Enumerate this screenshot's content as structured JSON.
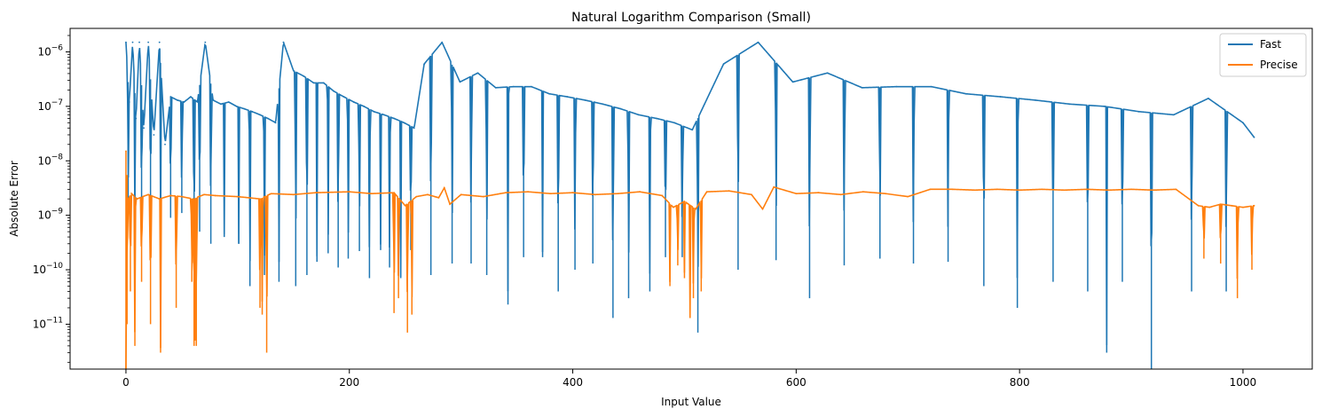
{
  "chart_data": {
    "type": "line",
    "title": "Natural Logarithm Comparison (Small)",
    "xlabel": "Input Value",
    "ylabel": "Absolute Error",
    "xlim": [
      -50,
      1062
    ],
    "ylim": [
      1.5e-12,
      2.7e-06
    ],
    "yscale": "log",
    "grid": false,
    "legend_position": "top-right",
    "xticks": [
      {
        "value": 0,
        "label": "0"
      },
      {
        "value": 200,
        "label": "200"
      },
      {
        "value": 400,
        "label": "400"
      },
      {
        "value": 600,
        "label": "600"
      },
      {
        "value": 800,
        "label": "800"
      },
      {
        "value": 1000,
        "label": "1000"
      }
    ],
    "yticks": [
      {
        "value": 1e-11,
        "base": "10",
        "exp": "−11"
      },
      {
        "value": 1e-10,
        "base": "10",
        "exp": "−10"
      },
      {
        "value": 1e-09,
        "base": "10",
        "exp": "−9"
      },
      {
        "value": 1e-08,
        "base": "10",
        "exp": "−8"
      },
      {
        "value": 1e-07,
        "base": "10",
        "exp": "−7"
      },
      {
        "value": 1e-06,
        "base": "10",
        "exp": "−6"
      }
    ],
    "series": [
      {
        "name": "Fast",
        "color": "#1f77b4",
        "x": [
          0,
          3,
          6,
          9,
          12,
          16,
          20,
          25,
          30,
          35,
          40,
          46,
          52,
          58,
          64,
          71,
          78,
          85,
          92,
          99,
          106,
          113,
          120,
          127,
          134,
          141,
          150,
          159,
          168,
          177,
          186,
          195,
          204,
          213,
          222,
          231,
          240,
          249,
          258,
          267,
          283,
          299,
          315,
          331,
          347,
          363,
          379,
          395,
          411,
          427,
          443,
          459,
          475,
          491,
          507,
          535,
          566,
          597,
          628,
          659,
          690,
          721,
          752,
          783,
          814,
          845,
          876,
          907,
          938,
          969,
          1000,
          1010
        ],
        "y": [
          1.5e-06,
          1.2e-07,
          1.5e-06,
          6e-08,
          1.5e-06,
          4e-08,
          1.5e-06,
          3e-08,
          1.5e-06,
          2e-08,
          1.5e-07,
          1.3e-07,
          1.2e-07,
          1.5e-07,
          1.2e-07,
          1.5e-06,
          1.3e-07,
          1.1e-07,
          1.2e-07,
          1e-07,
          9e-08,
          8e-08,
          7e-08,
          6e-08,
          5e-08,
          1.5e-06,
          4.5e-07,
          3.6e-07,
          2.7e-07,
          2.7e-07,
          1.9e-07,
          1.5e-07,
          1.2e-07,
          1e-07,
          8e-08,
          7e-08,
          6e-08,
          5e-08,
          4e-08,
          6e-07,
          1.5e-06,
          2.8e-07,
          4.1e-07,
          2.2e-07,
          2.3e-07,
          2.3e-07,
          1.7e-07,
          1.5e-07,
          1.3e-07,
          1.1e-07,
          9e-08,
          7e-08,
          6e-08,
          5e-08,
          3.7e-08,
          6e-07,
          1.5e-06,
          2.8e-07,
          4.1e-07,
          2.2e-07,
          2.3e-07,
          2.3e-07,
          1.7e-07,
          1.5e-07,
          1.3e-07,
          1.1e-07,
          1e-07,
          8e-08,
          7e-08,
          1.4e-07,
          5e-08,
          2.7e-08
        ],
        "x_dips": [
          2,
          8,
          14,
          22,
          31,
          40,
          50,
          61,
          66,
          76,
          88,
          101,
          111,
          124,
          137,
          152,
          162,
          171,
          181,
          190,
          199,
          209,
          218,
          228,
          236,
          246,
          255,
          273,
          292,
          309,
          323,
          342,
          356,
          373,
          387,
          402,
          418,
          436,
          450,
          469,
          483,
          498,
          512,
          548,
          582,
          612,
          643,
          675,
          705,
          736,
          768,
          798,
          830,
          861,
          878,
          892,
          918,
          954,
          985
        ],
        "y_dips": [
          1.5e-09,
          8e-10,
          5e-10,
          6e-10,
          4e-10,
          9e-10,
          1.1e-09,
          1e-10,
          5e-10,
          3e-10,
          4e-10,
          3e-10,
          5e-11,
          8e-11,
          6e-11,
          5e-11,
          8e-11,
          1.4e-10,
          2e-10,
          1.1e-10,
          1.6e-10,
          2.2e-10,
          7e-11,
          2.3e-10,
          1.1e-10,
          7e-11,
          2.3e-10,
          8e-11,
          1.3e-10,
          1.3e-10,
          8e-11,
          2.3e-11,
          1.7e-10,
          1.7e-10,
          4e-11,
          1e-10,
          1.3e-10,
          1.3e-11,
          3e-11,
          4e-11,
          1.7e-10,
          1.7e-10,
          7e-12,
          1e-10,
          1.5e-10,
          3e-11,
          1.2e-10,
          1.6e-10,
          1.3e-10,
          1.4e-10,
          5e-11,
          2e-11,
          6e-11,
          4e-11,
          3e-12,
          6e-11,
          1.2e-12,
          4e-11,
          4e-11
        ]
      },
      {
        "name": "Precise",
        "color": "#ff7f0e",
        "x": [
          0,
          2,
          5,
          10,
          15,
          20,
          30,
          40,
          50,
          60,
          70,
          80,
          100,
          120,
          130,
          150,
          170,
          200,
          220,
          240,
          250,
          260,
          270,
          280,
          285,
          290,
          300,
          320,
          340,
          360,
          380,
          400,
          420,
          440,
          460,
          480,
          490,
          500,
          510,
          520,
          540,
          560,
          570,
          580,
          600,
          620,
          640,
          660,
          680,
          700,
          720,
          740,
          760,
          780,
          800,
          820,
          840,
          860,
          880,
          900,
          920,
          940,
          960,
          970,
          980,
          990,
          1000,
          1010
        ],
        "y": [
          1.5e-08,
          2e-09,
          2.5e-09,
          2e-09,
          2.2e-09,
          2.4e-09,
          2e-09,
          2.3e-09,
          2.2e-09,
          2e-09,
          2.4e-09,
          2.3e-09,
          2.2e-09,
          2e-09,
          2.5e-09,
          2.4e-09,
          2.6e-09,
          2.7e-09,
          2.5e-09,
          2.6e-09,
          1.5e-09,
          2.2e-09,
          2.4e-09,
          2.1e-09,
          3.2e-09,
          1.6e-09,
          2.4e-09,
          2.2e-09,
          2.6e-09,
          2.7e-09,
          2.5e-09,
          2.6e-09,
          2.4e-09,
          2.5e-09,
          2.7e-09,
          2.3e-09,
          1.4e-09,
          1.8e-09,
          1.3e-09,
          2.7e-09,
          2.8e-09,
          2.4e-09,
          1.3e-09,
          3.3e-09,
          2.5e-09,
          2.6e-09,
          2.4e-09,
          2.7e-09,
          2.5e-09,
          2.2e-09,
          3e-09,
          3e-09,
          2.9e-09,
          3e-09,
          2.9e-09,
          3e-09,
          2.9e-09,
          3e-09,
          2.9e-09,
          3e-09,
          2.9e-09,
          3e-09,
          1.5e-09,
          1.4e-09,
          1.6e-09,
          1.5e-09,
          1.4e-09,
          1.5e-09
        ],
        "x_dips": [
          0,
          1,
          4,
          8,
          14,
          22,
          31,
          45,
          59,
          61,
          62,
          63,
          120,
          122,
          126,
          240,
          244,
          252,
          256,
          487,
          494,
          500,
          505,
          508,
          515,
          965,
          980,
          995,
          1008
        ],
        "y_dips": [
          1.5e-12,
          1e-11,
          4e-11,
          4e-12,
          6e-11,
          1e-11,
          3e-12,
          2e-11,
          6e-11,
          4e-12,
          5e-12,
          4e-12,
          2e-11,
          1.5e-11,
          3e-12,
          1.6e-11,
          3e-11,
          7e-12,
          1.5e-11,
          5e-11,
          1.2e-10,
          7e-11,
          1.3e-11,
          3e-11,
          4e-11,
          1.6e-10,
          1.3e-10,
          3e-11,
          1e-10
        ]
      }
    ]
  }
}
